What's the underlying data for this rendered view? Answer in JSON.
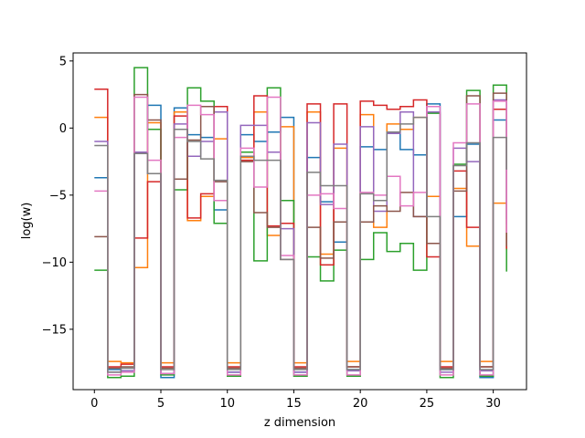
{
  "chart_data": {
    "type": "line",
    "step": "post",
    "title": "",
    "xlabel": "z dimension",
    "ylabel": "log(w)",
    "xlim": [
      -1.6,
      32.5
    ],
    "ylim": [
      -19.5,
      5.6
    ],
    "x_ticks": [
      {
        "value": 0,
        "label": "0"
      },
      {
        "value": 5,
        "label": "5"
      },
      {
        "value": 10,
        "label": "10"
      },
      {
        "value": 15,
        "label": "15"
      },
      {
        "value": 20,
        "label": "20"
      },
      {
        "value": 25,
        "label": "25"
      },
      {
        "value": 30,
        "label": "30"
      }
    ],
    "y_ticks": [
      {
        "value": 5,
        "label": "5"
      },
      {
        "value": 0,
        "label": "0"
      },
      {
        "value": -5,
        "label": "−5"
      },
      {
        "value": -10,
        "label": "−10"
      },
      {
        "value": -15,
        "label": "−15"
      }
    ],
    "grid": false,
    "x": [
      0,
      1,
      2,
      3,
      4,
      5,
      6,
      7,
      8,
      9,
      10,
      11,
      12,
      13,
      14,
      15,
      16,
      17,
      18,
      19,
      20,
      21,
      22,
      23,
      24,
      25,
      26,
      27,
      28,
      29,
      30,
      31
    ],
    "series": [
      {
        "color": "#1f77b4",
        "values": [
          -3.7,
          -18.0,
          -18.1,
          -1.8,
          1.7,
          -18.6,
          1.5,
          -0.5,
          -0.7,
          -6.1,
          -18.2,
          -0.5,
          -1.0,
          -0.3,
          0.8,
          -18.2,
          -2.2,
          -5.5,
          -8.5,
          -18.0,
          -1.4,
          -1.6,
          -0.4,
          -1.6,
          -2.0,
          1.8,
          -18.0,
          -6.6,
          -1.2,
          -18.6,
          0.6,
          -6.8
        ]
      },
      {
        "color": "#ff7f0e",
        "values": [
          0.8,
          -17.4,
          -17.5,
          -10.4,
          0.4,
          -17.5,
          1.2,
          -6.9,
          -5.1,
          -0.8,
          -17.5,
          -2.2,
          1.2,
          -8.0,
          0.1,
          -17.5,
          1.2,
          -9.4,
          -1.5,
          -17.4,
          1.0,
          -7.4,
          0.3,
          -0.1,
          0.8,
          -5.1,
          -17.4,
          -4.5,
          -8.8,
          -17.4,
          -5.6,
          -9.1
        ]
      },
      {
        "color": "#2ca02c",
        "values": [
          -10.6,
          -18.6,
          -18.5,
          4.5,
          -0.1,
          -18.4,
          -4.6,
          3.0,
          2.0,
          -7.1,
          -18.5,
          -1.8,
          -9.9,
          3.0,
          -5.4,
          -18.5,
          -9.6,
          -11.4,
          -9.1,
          -18.5,
          -9.8,
          -7.8,
          -9.2,
          -8.6,
          -10.6,
          1.1,
          -18.6,
          -2.7,
          2.8,
          -18.5,
          3.2,
          -10.7
        ]
      },
      {
        "color": "#d62728",
        "values": [
          2.9,
          -17.8,
          -17.6,
          -8.2,
          -4.0,
          -17.8,
          0.9,
          -6.7,
          -4.9,
          1.6,
          -17.8,
          -2.4,
          2.4,
          -7.3,
          -7.1,
          -17.8,
          1.8,
          -10.2,
          1.8,
          -17.8,
          2.0,
          1.7,
          1.4,
          1.6,
          2.1,
          -9.6,
          -17.8,
          -3.2,
          -7.4,
          -17.8,
          1.4,
          -9.0
        ]
      },
      {
        "color": "#9467bd",
        "values": [
          -1.0,
          -18.2,
          -18.1,
          -1.8,
          -3.4,
          -18.3,
          0.3,
          -2.1,
          -1.0,
          1.2,
          -18.2,
          0.2,
          0.2,
          -1.8,
          -7.5,
          -18.2,
          0.4,
          -5.7,
          -1.2,
          -18.1,
          0.1,
          -6.2,
          -0.4,
          1.2,
          -6.6,
          1.2,
          -18.2,
          -1.5,
          -2.5,
          -18.1,
          2.1,
          -7.2
        ]
      },
      {
        "color": "#8c564b",
        "values": [
          -8.1,
          -17.9,
          -17.8,
          2.5,
          0.6,
          -17.9,
          -3.8,
          -0.9,
          1.6,
          -4.0,
          -17.9,
          -2.5,
          -6.3,
          -7.4,
          -9.8,
          -17.9,
          -7.4,
          -9.7,
          -7.0,
          -17.8,
          -7.0,
          -5.8,
          -6.2,
          -4.8,
          -6.6,
          -8.6,
          -17.9,
          -4.7,
          2.4,
          -17.8,
          2.6,
          -8.8
        ]
      },
      {
        "color": "#e377c2",
        "values": [
          -4.7,
          -18.4,
          -18.2,
          2.3,
          -2.4,
          -18.3,
          -0.7,
          1.7,
          1.0,
          -5.4,
          -18.4,
          -1.5,
          -4.4,
          2.3,
          -9.5,
          -18.4,
          -5.0,
          -4.9,
          -6.0,
          -18.4,
          -4.8,
          -5.0,
          -3.6,
          -5.8,
          -4.8,
          1.6,
          -18.4,
          -1.1,
          1.8,
          -18.4,
          2.0,
          -7.8
        ]
      },
      {
        "color": "#7f7f7f",
        "values": [
          -1.3,
          -18.2,
          -17.9,
          -1.9,
          -3.4,
          -18.0,
          -0.1,
          -1.0,
          -2.3,
          -3.9,
          -18.0,
          -2.1,
          -2.4,
          -2.4,
          -9.8,
          -18.0,
          -3.3,
          -4.3,
          -4.3,
          -18.0,
          -4.9,
          -5.4,
          -0.3,
          0.3,
          0.8,
          -6.6,
          -18.0,
          -2.8,
          -1.1,
          -18.0,
          -0.7,
          -3.1
        ]
      }
    ]
  }
}
